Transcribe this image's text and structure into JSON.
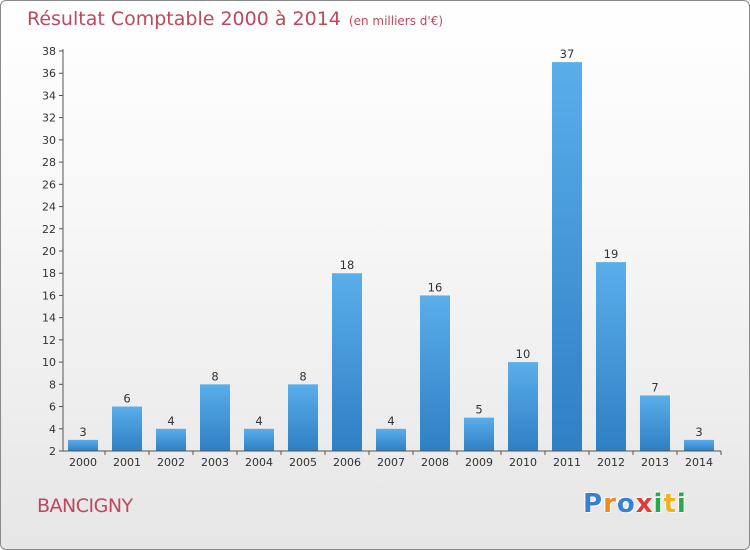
{
  "chart_data": {
    "type": "bar",
    "title": "Résultat Comptable 2000 à 2014",
    "subtitle": "(en milliers d'€)",
    "categories": [
      "2000",
      "2001",
      "2002",
      "2003",
      "2004",
      "2005",
      "2006",
      "2007",
      "2008",
      "2009",
      "2010",
      "2011",
      "2012",
      "2013",
      "2014"
    ],
    "values": [
      3,
      6,
      4,
      8,
      4,
      8,
      18,
      4,
      16,
      5,
      10,
      37,
      19,
      7,
      3
    ],
    "ylim": [
      2,
      38
    ],
    "yticks": [
      2,
      4,
      6,
      8,
      10,
      12,
      14,
      16,
      18,
      20,
      22,
      24,
      26,
      28,
      30,
      32,
      34,
      36,
      38
    ],
    "xlabel": "",
    "ylabel": "",
    "grid": false,
    "bar_color": "#4a9fe0"
  },
  "location": "BANCIGNY",
  "logo": {
    "letters": [
      "P",
      "r",
      "o",
      "x",
      "i",
      "t",
      "i"
    ],
    "colors": [
      "#3a7fd0",
      "#f08a20",
      "#3a7fd0",
      "#e03c3c",
      "#2aa84a",
      "#f0b020",
      "#2aa84a"
    ]
  },
  "colors": {
    "title": "#c0485c",
    "axis": "#555555"
  }
}
